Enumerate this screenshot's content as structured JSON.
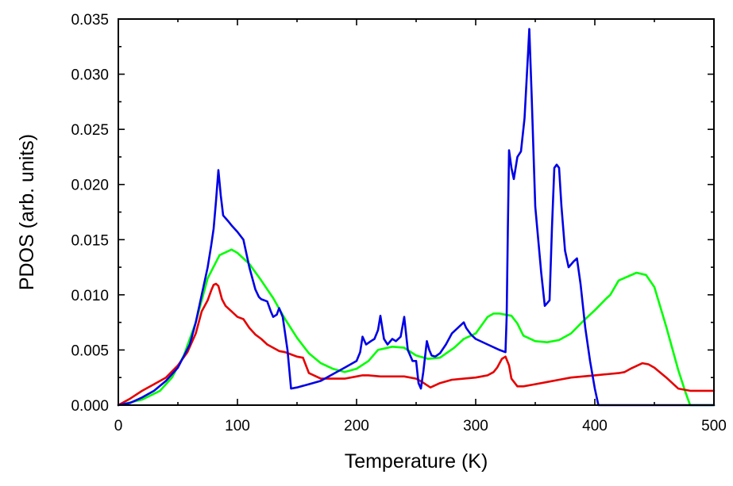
{
  "chart_data": {
    "type": "line",
    "xlabel": "Temperature (K)",
    "ylabel": "PDOS (arb. units)",
    "xlim": [
      0,
      500
    ],
    "ylim": [
      0,
      0.035
    ],
    "x_ticks": [
      "0",
      "100",
      "200",
      "300",
      "400",
      "500"
    ],
    "y_ticks": [
      "0.000",
      "0.005",
      "0.010",
      "0.015",
      "0.020",
      "0.025",
      "0.030",
      "0.035"
    ],
    "grid": false,
    "legend": "none",
    "series": [
      {
        "color": "#00ff00",
        "x": [
          0,
          20,
          35,
          45,
          55,
          65,
          75,
          85,
          95,
          100,
          110,
          120,
          130,
          140,
          150,
          160,
          170,
          180,
          190,
          200,
          210,
          218,
          230,
          240,
          250,
          260,
          270,
          282,
          290,
          300,
          310,
          315,
          320,
          330,
          335,
          340,
          350,
          360,
          370,
          380,
          390,
          400,
          410,
          413,
          420,
          435,
          443,
          450,
          460,
          470,
          476,
          480,
          500
        ],
        "y": [
          0.0,
          0.0005,
          0.0013,
          0.0025,
          0.0045,
          0.0075,
          0.0115,
          0.0136,
          0.0141,
          0.0138,
          0.0128,
          0.0113,
          0.0097,
          0.0078,
          0.0061,
          0.0047,
          0.0038,
          0.0033,
          0.003,
          0.0033,
          0.004,
          0.005,
          0.0053,
          0.0052,
          0.0045,
          0.0042,
          0.0043,
          0.0052,
          0.006,
          0.0065,
          0.008,
          0.0083,
          0.0083,
          0.0081,
          0.0074,
          0.0063,
          0.0058,
          0.0057,
          0.0059,
          0.0065,
          0.0076,
          0.0086,
          0.0097,
          0.01,
          0.0113,
          0.012,
          0.0118,
          0.0107,
          0.0071,
          0.0032,
          0.0012,
          0.0,
          0.0
        ]
      },
      {
        "color": "#e60000",
        "x": [
          0,
          10,
          20,
          30,
          40,
          50,
          58,
          65,
          70,
          75,
          78,
          80,
          82,
          84,
          87,
          90,
          95,
          100,
          105,
          110,
          115,
          120,
          125,
          130,
          135,
          140,
          145,
          150,
          155,
          160,
          170,
          180,
          190,
          200,
          205,
          210,
          220,
          230,
          240,
          250,
          255,
          262,
          270,
          280,
          290,
          300,
          305,
          310,
          315,
          318,
          322,
          325,
          328,
          330,
          335,
          340,
          350,
          360,
          370,
          380,
          390,
          400,
          410,
          420,
          425,
          430,
          440,
          445,
          450,
          460,
          470,
          480,
          490,
          500
        ],
        "y": [
          0.0,
          0.0006,
          0.0013,
          0.0019,
          0.0025,
          0.0036,
          0.0048,
          0.0065,
          0.0085,
          0.0095,
          0.0104,
          0.0109,
          0.011,
          0.0108,
          0.0096,
          0.009,
          0.0085,
          0.008,
          0.0078,
          0.007,
          0.0064,
          0.006,
          0.0055,
          0.0052,
          0.0049,
          0.0048,
          0.0046,
          0.0044,
          0.0043,
          0.0029,
          0.0024,
          0.0024,
          0.0024,
          0.0026,
          0.0027,
          0.0027,
          0.0026,
          0.0026,
          0.0026,
          0.0024,
          0.0021,
          0.0016,
          0.002,
          0.0023,
          0.0024,
          0.0025,
          0.0026,
          0.0027,
          0.003,
          0.0034,
          0.0042,
          0.0044,
          0.0036,
          0.0024,
          0.0017,
          0.0017,
          0.0019,
          0.0021,
          0.0023,
          0.0025,
          0.0026,
          0.0027,
          0.0028,
          0.0029,
          0.003,
          0.0033,
          0.0038,
          0.0037,
          0.0034,
          0.0025,
          0.0015,
          0.0013,
          0.0013,
          0.0013
        ]
      },
      {
        "color": "#0000e6",
        "x": [
          0,
          10,
          20,
          30,
          40,
          50,
          60,
          65,
          70,
          75,
          78,
          80,
          82,
          84,
          86,
          88,
          92,
          95,
          100,
          105,
          110,
          115,
          118,
          120,
          125,
          128,
          130,
          133,
          135,
          138,
          142,
          145,
          150,
          160,
          170,
          180,
          190,
          200,
          203,
          205,
          208,
          212,
          215,
          218,
          220,
          223,
          226,
          230,
          233,
          237,
          240,
          243,
          247,
          250,
          252,
          254,
          256,
          259,
          261,
          263,
          266,
          270,
          275,
          280,
          285,
          290,
          292,
          296,
          300,
          310,
          320,
          325,
          326,
          327,
          328,
          330,
          332,
          335,
          338,
          341,
          344,
          345,
          347,
          350,
          355,
          358,
          362,
          364,
          366,
          368,
          370,
          372,
          375,
          378,
          382,
          385,
          388,
          392,
          396,
          400,
          403,
          405,
          500
        ],
        "y": [
          0.0,
          0.0002,
          0.0007,
          0.0013,
          0.0022,
          0.0034,
          0.0055,
          0.0075,
          0.01,
          0.0125,
          0.0145,
          0.016,
          0.0185,
          0.0213,
          0.019,
          0.0172,
          0.0167,
          0.0163,
          0.0157,
          0.015,
          0.0125,
          0.0105,
          0.0098,
          0.0096,
          0.0094,
          0.0085,
          0.008,
          0.0082,
          0.0088,
          0.008,
          0.005,
          0.0015,
          0.0016,
          0.0019,
          0.0022,
          0.0028,
          0.0034,
          0.004,
          0.0048,
          0.0062,
          0.0055,
          0.0058,
          0.006,
          0.0068,
          0.0081,
          0.006,
          0.0055,
          0.006,
          0.0058,
          0.0062,
          0.008,
          0.005,
          0.004,
          0.004,
          0.002,
          0.0015,
          0.003,
          0.0058,
          0.005,
          0.0045,
          0.0044,
          0.0047,
          0.0055,
          0.0065,
          0.007,
          0.0075,
          0.007,
          0.0064,
          0.006,
          0.0055,
          0.005,
          0.0048,
          0.008,
          0.016,
          0.0231,
          0.0215,
          0.0205,
          0.0225,
          0.023,
          0.026,
          0.032,
          0.0341,
          0.028,
          0.018,
          0.012,
          0.009,
          0.0095,
          0.016,
          0.0215,
          0.0218,
          0.0215,
          0.018,
          0.014,
          0.0125,
          0.013,
          0.0133,
          0.011,
          0.007,
          0.004,
          0.0015,
          0.0,
          0.0,
          0.0
        ]
      }
    ]
  }
}
